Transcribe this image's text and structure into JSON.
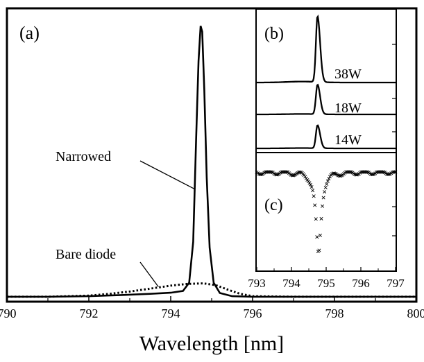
{
  "chart_data": [
    {
      "panel": "main",
      "type": "line",
      "panel_label": "(a)",
      "xlabel": "Wavelength [nm]",
      "ylabel": "",
      "xlim": [
        790,
        800
      ],
      "ylim": [
        0,
        1.0
      ],
      "x_ticks": [
        790,
        792,
        794,
        796,
        798,
        800
      ],
      "series": [
        {
          "name": "Narrowed",
          "style": "solid",
          "points": [
            [
              790.0,
              0.012
            ],
            [
              791.0,
              0.012
            ],
            [
              792.0,
              0.014
            ],
            [
              792.8,
              0.018
            ],
            [
              793.5,
              0.022
            ],
            [
              794.0,
              0.026
            ],
            [
              794.3,
              0.032
            ],
            [
              794.45,
              0.06
            ],
            [
              794.55,
              0.2
            ],
            [
              794.62,
              0.55
            ],
            [
              794.68,
              0.82
            ],
            [
              794.73,
              0.94
            ],
            [
              794.77,
              0.92
            ],
            [
              794.82,
              0.72
            ],
            [
              794.88,
              0.42
            ],
            [
              794.95,
              0.18
            ],
            [
              795.05,
              0.06
            ],
            [
              795.2,
              0.025
            ],
            [
              795.5,
              0.014
            ],
            [
              796.0,
              0.012
            ],
            [
              798.0,
              0.012
            ],
            [
              800.0,
              0.012
            ]
          ]
        },
        {
          "name": "Bare diode",
          "style": "dotted",
          "points": [
            [
              790.0,
              0.012
            ],
            [
              791.0,
              0.012
            ],
            [
              792.0,
              0.016
            ],
            [
              792.5,
              0.022
            ],
            [
              793.0,
              0.03
            ],
            [
              793.5,
              0.04
            ],
            [
              794.0,
              0.05
            ],
            [
              794.4,
              0.056
            ],
            [
              794.8,
              0.058
            ],
            [
              795.1,
              0.052
            ],
            [
              795.4,
              0.036
            ],
            [
              795.7,
              0.022
            ],
            [
              796.0,
              0.014
            ],
            [
              797.0,
              0.012
            ],
            [
              800.0,
              0.012
            ]
          ]
        }
      ],
      "annotations": [
        {
          "text": "Narrowed",
          "target": [
            794.6,
            0.38
          ]
        },
        {
          "text": "Bare diode",
          "target": [
            793.7,
            0.046
          ]
        }
      ]
    },
    {
      "panel": "inset-b",
      "type": "line",
      "panel_label": "(b)",
      "series": [
        {
          "name": "38W",
          "peak_x": 794.75,
          "peak_height": 1.0
        },
        {
          "name": "18W",
          "peak_x": 794.75,
          "peak_height": 0.45
        },
        {
          "name": "14W",
          "peak_x": 794.75,
          "peak_height": 0.35
        }
      ]
    },
    {
      "panel": "inset-c",
      "type": "scatter",
      "panel_label": "(c)",
      "xlim": [
        793,
        797
      ],
      "x_ticks": [
        793,
        794,
        795,
        796,
        797
      ],
      "dip_center": 794.78,
      "dip_width": 0.09,
      "dip_depth": 0.92,
      "point_count": 130
    }
  ]
}
